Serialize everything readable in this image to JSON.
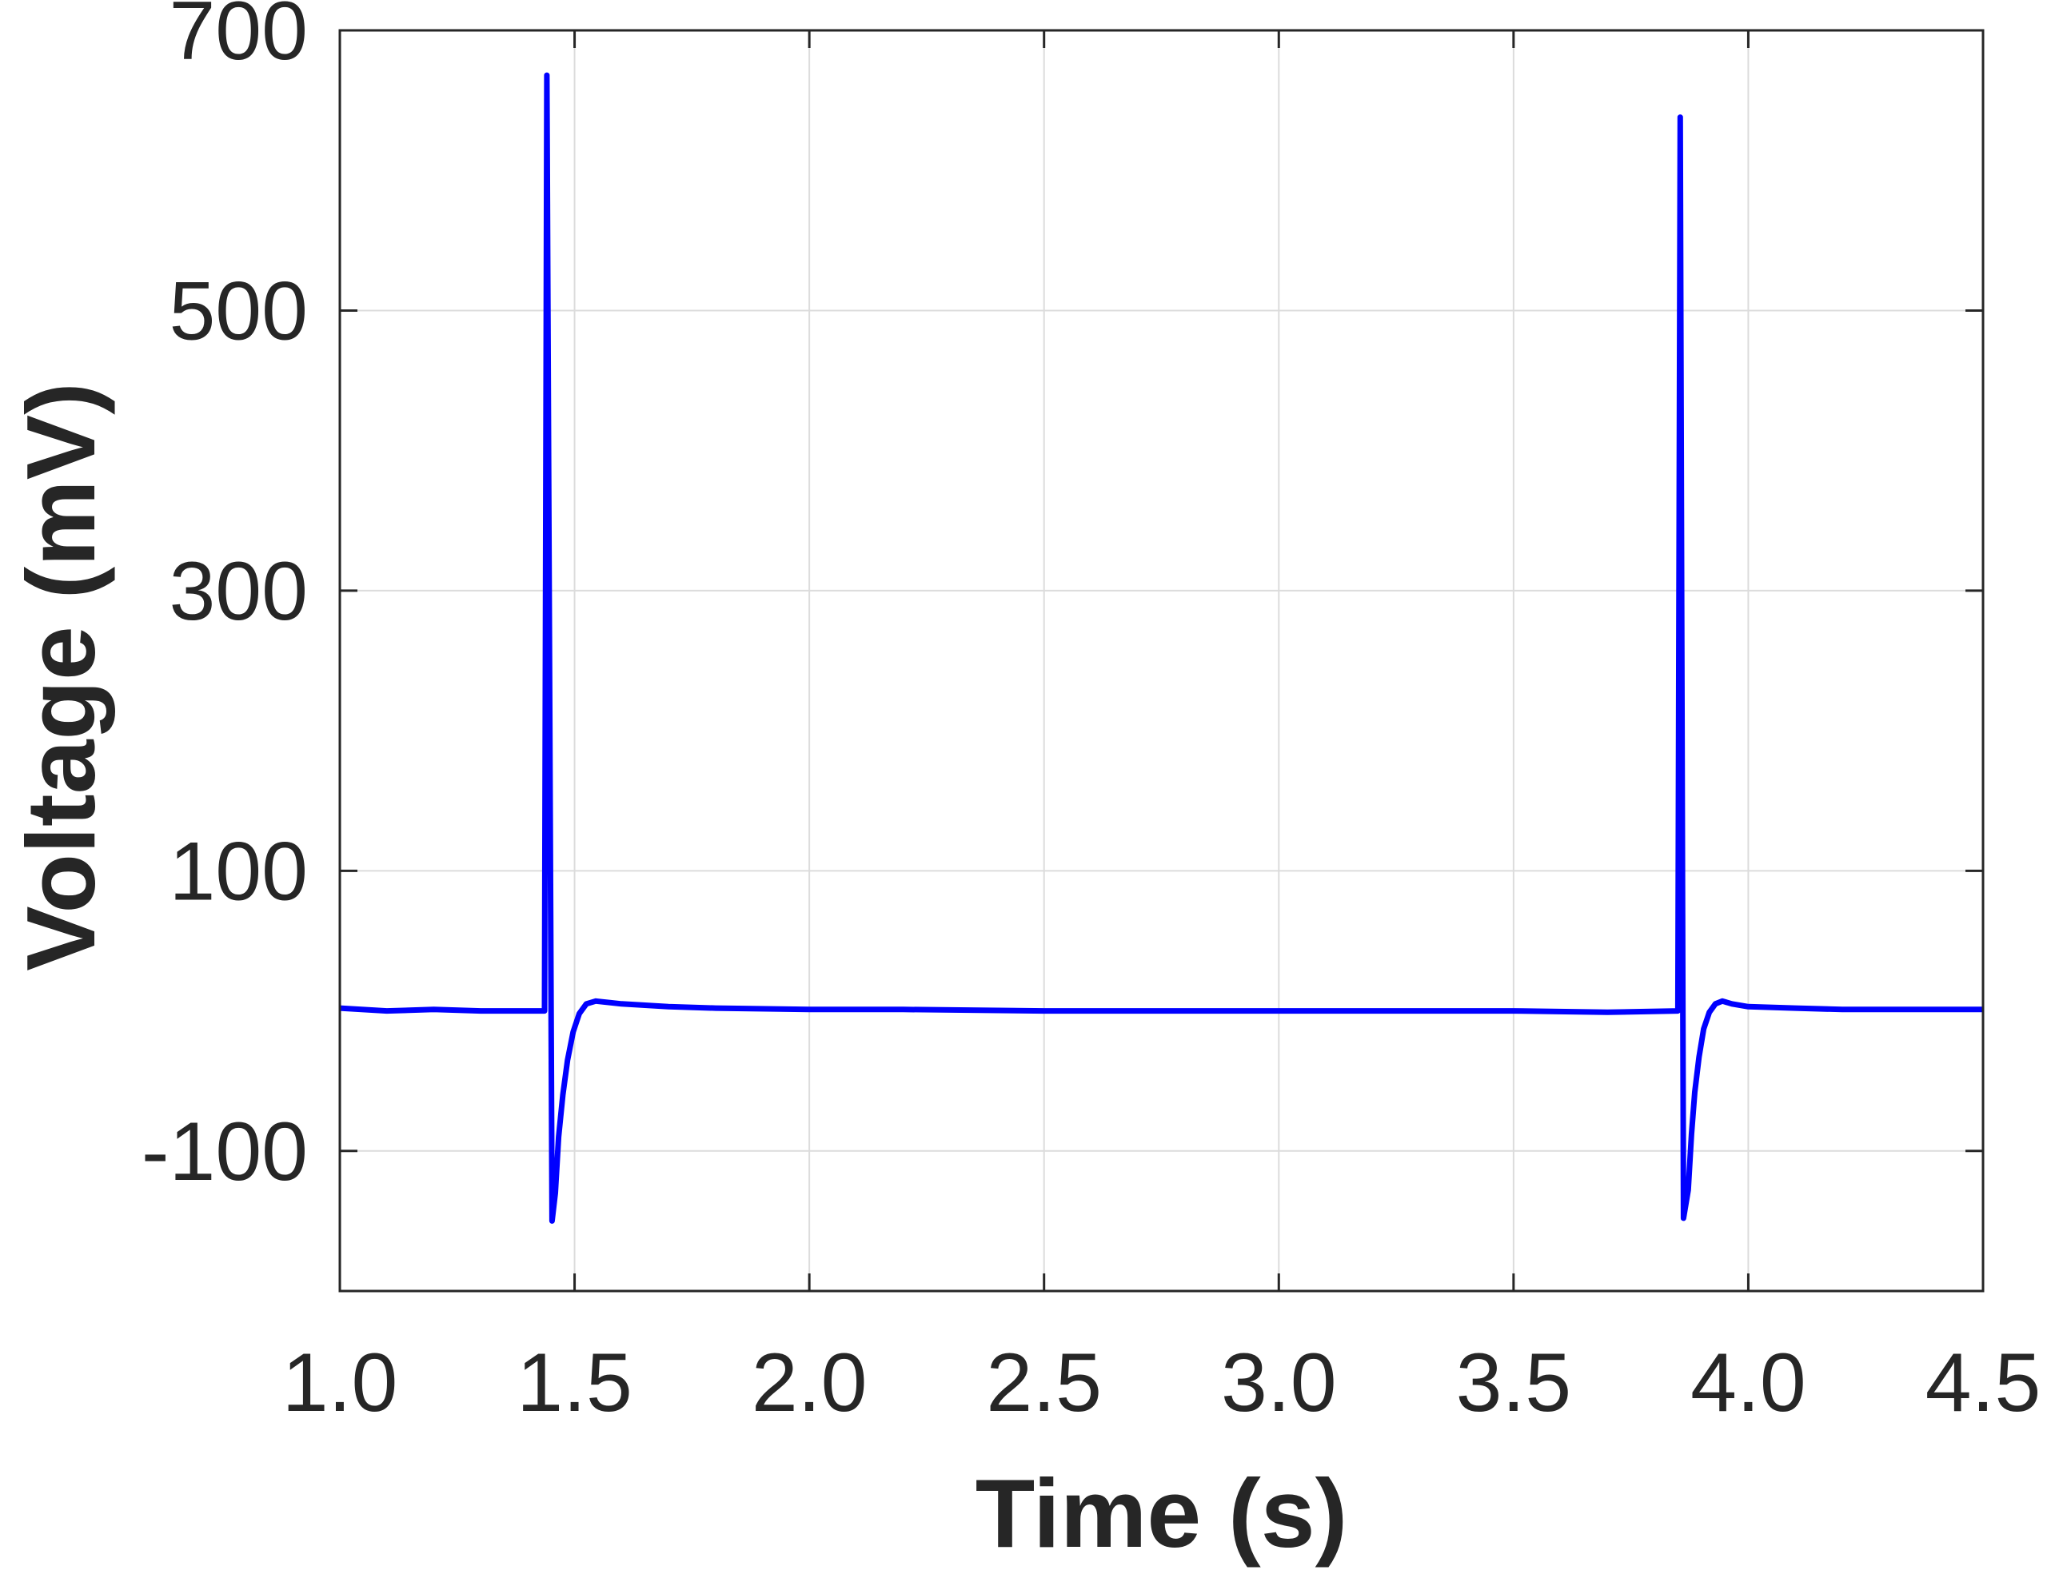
{
  "chart_data": {
    "type": "line",
    "title": "",
    "xlabel": "Time (s)",
    "ylabel": "Voltage (mV)",
    "xlim": [
      1.0,
      4.5
    ],
    "ylim": [
      -200,
      700
    ],
    "x_ticks": [
      1.0,
      1.5,
      2.0,
      2.5,
      3.0,
      3.5,
      4.0,
      4.5
    ],
    "x_tick_labels": [
      "1.0",
      "1.5",
      "2.0",
      "2.5",
      "3.0",
      "3.5",
      "4.0",
      "4.5"
    ],
    "y_ticks": [
      -100,
      100,
      300,
      500,
      700
    ],
    "y_tick_labels": [
      "-100",
      "100",
      "300",
      "500",
      "700"
    ],
    "grid": true,
    "legend": "none",
    "line_color": "#0000ff",
    "series": [
      {
        "x": [
          1.0,
          1.1,
          1.2,
          1.3,
          1.38,
          1.436,
          1.441,
          1.452,
          1.459,
          1.466,
          1.475,
          1.485,
          1.497,
          1.51,
          1.525,
          1.545,
          1.6,
          1.7,
          1.8,
          2.0,
          2.2,
          2.5,
          2.8,
          3.0,
          3.2,
          3.5,
          3.7,
          3.85,
          3.855,
          3.862,
          3.872,
          3.879,
          3.886,
          3.895,
          3.905,
          3.917,
          3.93,
          3.945,
          3.965,
          4.0,
          4.1,
          4.2,
          4.3,
          4.4,
          4.5
        ],
        "y": [
          2,
          0,
          1,
          0,
          0,
          0,
          668,
          -150,
          -130,
          -90,
          -60,
          -35,
          -15,
          -2,
          5,
          7,
          5,
          3,
          2,
          1,
          1,
          0,
          0,
          0,
          0,
          0,
          -1,
          0,
          638,
          -148,
          -128,
          -88,
          -58,
          -33,
          -13,
          -1,
          5,
          7,
          5,
          3,
          2,
          1,
          1,
          1,
          1
        ]
      }
    ]
  }
}
